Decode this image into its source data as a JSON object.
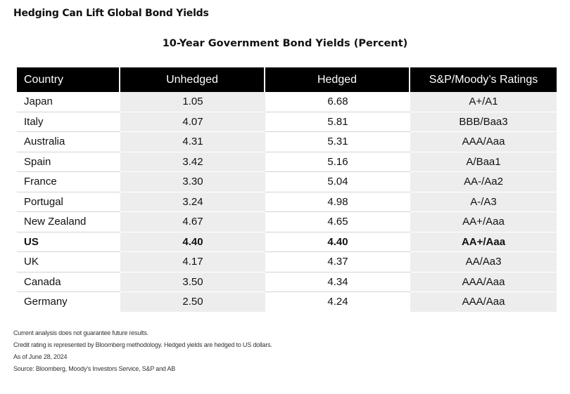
{
  "header": {
    "title": "Hedging Can Lift Global Bond Yields"
  },
  "chart_data": {
    "type": "table",
    "title": "10-Year Government Bond Yields (Percent)",
    "columns": [
      "Country",
      "Unhedged",
      "Hedged",
      "S&P/Moody’s Ratings"
    ],
    "rows": [
      {
        "country": "Japan",
        "unhedged": "1.05",
        "hedged": "6.68",
        "rating": "A+/A1"
      },
      {
        "country": "Italy",
        "unhedged": "4.07",
        "hedged": "5.81",
        "rating": "BBB/Baa3"
      },
      {
        "country": "Australia",
        "unhedged": "4.31",
        "hedged": "5.31",
        "rating": "AAA/Aaa"
      },
      {
        "country": "Spain",
        "unhedged": "3.42",
        "hedged": "5.16",
        "rating": "A/Baa1"
      },
      {
        "country": "France",
        "unhedged": "3.30",
        "hedged": "5.04",
        "rating": "AA-/Aa2"
      },
      {
        "country": "Portugal",
        "unhedged": "3.24",
        "hedged": "4.98",
        "rating": "A-/A3"
      },
      {
        "country": "New Zealand",
        "unhedged": "4.67",
        "hedged": "4.65",
        "rating": "AA+/Aaa"
      },
      {
        "country": "US",
        "unhedged": "4.40",
        "hedged": "4.40",
        "rating": "AA+/Aaa",
        "highlight": true
      },
      {
        "country": "UK",
        "unhedged": "4.17",
        "hedged": "4.37",
        "rating": "AA/Aa3"
      },
      {
        "country": "Canada",
        "unhedged": "3.50",
        "hedged": "4.34",
        "rating": "AAA/Aaa"
      },
      {
        "country": "Germany",
        "unhedged": "2.50",
        "hedged": "4.24",
        "rating": "AAA/Aaa"
      }
    ]
  },
  "footnotes": [
    "Current analysis does not guarantee future results.",
    "Credit rating is represented by Bloomberg methodology. Hedged yields are hedged to US dollars.",
    "As of June 28, 2024",
    "Source: Bloomberg, Moody’s Investors Service, S&P and AB"
  ]
}
